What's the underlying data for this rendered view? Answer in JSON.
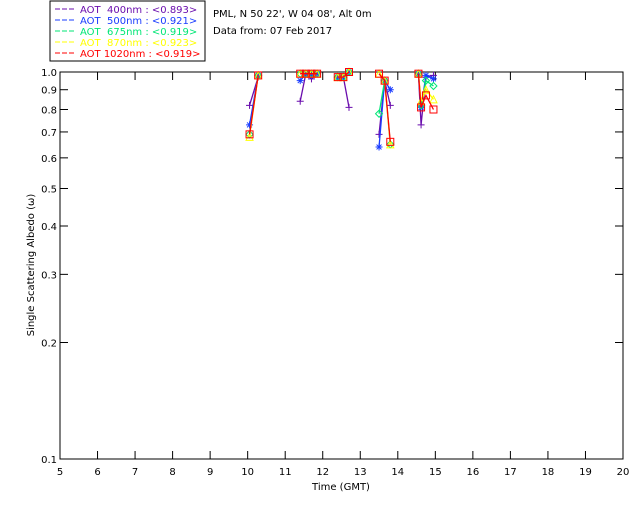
{
  "chart_data": {
    "type": "line",
    "title_lines": [
      "PML, N 50 22', W 04 08', Alt 0m",
      "Data from: 07 Feb 2017"
    ],
    "xlabel": "Time (GMT)",
    "ylabel": "Single Scattering Albedo (ω)",
    "xlim": [
      5,
      20
    ],
    "ylim": [
      0.1,
      1.0
    ],
    "yscale": "log",
    "xticks": [
      "5",
      "6",
      "7",
      "8",
      "9",
      "10",
      "11",
      "12",
      "13",
      "14",
      "15",
      "16",
      "17",
      "18",
      "19",
      "20"
    ],
    "yticks": [
      0.1,
      0.2,
      0.3,
      0.4,
      0.5,
      0.6,
      0.7,
      0.8,
      0.9,
      1.0
    ],
    "ytick_labels": [
      "0.1",
      "0.2",
      "0.3",
      "0.4",
      "0.5",
      "0.6",
      "0.7",
      "0.8",
      "0.9",
      "1.0"
    ],
    "legend_position": "top-left",
    "series": [
      {
        "name": "AOT  400nm : <0.893>",
        "color": "#6a0dad",
        "marker": "plus",
        "segments": [
          [
            [
              10.05,
              0.82
            ],
            [
              10.28,
              0.97
            ]
          ],
          [
            [
              11.4,
              0.84
            ],
            [
              11.55,
              0.99
            ],
            [
              11.7,
              0.96
            ],
            [
              11.85,
              0.99
            ]
          ],
          [
            [
              12.4,
              0.97
            ],
            [
              12.55,
              0.97
            ],
            [
              12.7,
              0.81
            ]
          ],
          [
            [
              13.5,
              0.69
            ],
            [
              13.65,
              0.95
            ],
            [
              13.8,
              0.82
            ]
          ],
          [
            [
              14.55,
              0.99
            ],
            [
              14.62,
              0.73
            ],
            [
              14.75,
              0.97
            ],
            [
              14.95,
              0.98
            ]
          ]
        ]
      },
      {
        "name": "AOT  500nm : <0.921>",
        "color": "#1a3cff",
        "marker": "asterisk",
        "segments": [
          [
            [
              10.05,
              0.73
            ],
            [
              10.28,
              0.98
            ]
          ],
          [
            [
              11.4,
              0.95
            ],
            [
              11.55,
              0.99
            ],
            [
              11.7,
              0.98
            ],
            [
              11.85,
              0.99
            ]
          ],
          [
            [
              12.4,
              0.97
            ],
            [
              12.55,
              0.97
            ],
            [
              12.7,
              1.0
            ]
          ],
          [
            [
              13.5,
              0.64
            ],
            [
              13.65,
              0.95
            ],
            [
              13.8,
              0.9
            ]
          ],
          [
            [
              14.55,
              0.99
            ],
            [
              14.62,
              0.81
            ],
            [
              14.75,
              0.98
            ],
            [
              14.95,
              0.96
            ]
          ]
        ]
      },
      {
        "name": "AOT  675nm : <0.919>",
        "color": "#00e676",
        "marker": "diamond",
        "segments": [
          [
            [
              10.05,
              0.69
            ],
            [
              10.28,
              0.98
            ]
          ],
          [
            [
              11.4,
              0.99
            ],
            [
              11.55,
              0.99
            ],
            [
              11.7,
              0.99
            ],
            [
              11.85,
              0.99
            ]
          ],
          [
            [
              12.4,
              0.97
            ],
            [
              12.55,
              0.97
            ],
            [
              12.7,
              1.0
            ]
          ],
          [
            [
              13.5,
              0.78
            ],
            [
              13.65,
              0.95
            ],
            [
              13.8,
              0.65
            ]
          ],
          [
            [
              14.55,
              0.99
            ],
            [
              14.62,
              0.82
            ],
            [
              14.75,
              0.95
            ],
            [
              14.95,
              0.92
            ]
          ]
        ]
      },
      {
        "name": "AOT  870nm : <0.923>",
        "color": "#ffff00",
        "marker": "triangle",
        "segments": [
          [
            [
              10.05,
              0.68
            ],
            [
              10.28,
              0.98
            ]
          ],
          [
            [
              11.4,
              0.99
            ],
            [
              11.55,
              0.99
            ],
            [
              11.7,
              0.99
            ],
            [
              11.85,
              0.99
            ]
          ],
          [
            [
              12.4,
              0.97
            ],
            [
              12.55,
              0.97
            ],
            [
              12.7,
              1.0
            ]
          ],
          [
            [
              13.5,
              0.99
            ],
            [
              13.65,
              0.95
            ],
            [
              13.8,
              0.65
            ]
          ],
          [
            [
              14.55,
              0.99
            ],
            [
              14.62,
              0.84
            ],
            [
              14.75,
              0.9
            ],
            [
              14.95,
              0.85
            ]
          ]
        ]
      },
      {
        "name": "AOT 1020nm : <0.919>",
        "color": "#ff0000",
        "marker": "square",
        "segments": [
          [
            [
              10.05,
              0.69
            ],
            [
              10.28,
              0.98
            ]
          ],
          [
            [
              11.4,
              0.99
            ],
            [
              11.55,
              0.99
            ],
            [
              11.7,
              0.99
            ],
            [
              11.85,
              0.99
            ]
          ],
          [
            [
              12.4,
              0.97
            ],
            [
              12.55,
              0.97
            ],
            [
              12.7,
              1.0
            ]
          ],
          [
            [
              13.5,
              0.99
            ],
            [
              13.65,
              0.95
            ],
            [
              13.8,
              0.66
            ]
          ],
          [
            [
              14.55,
              0.99
            ],
            [
              14.62,
              0.81
            ],
            [
              14.75,
              0.87
            ],
            [
              14.95,
              0.8
            ]
          ]
        ]
      }
    ]
  }
}
